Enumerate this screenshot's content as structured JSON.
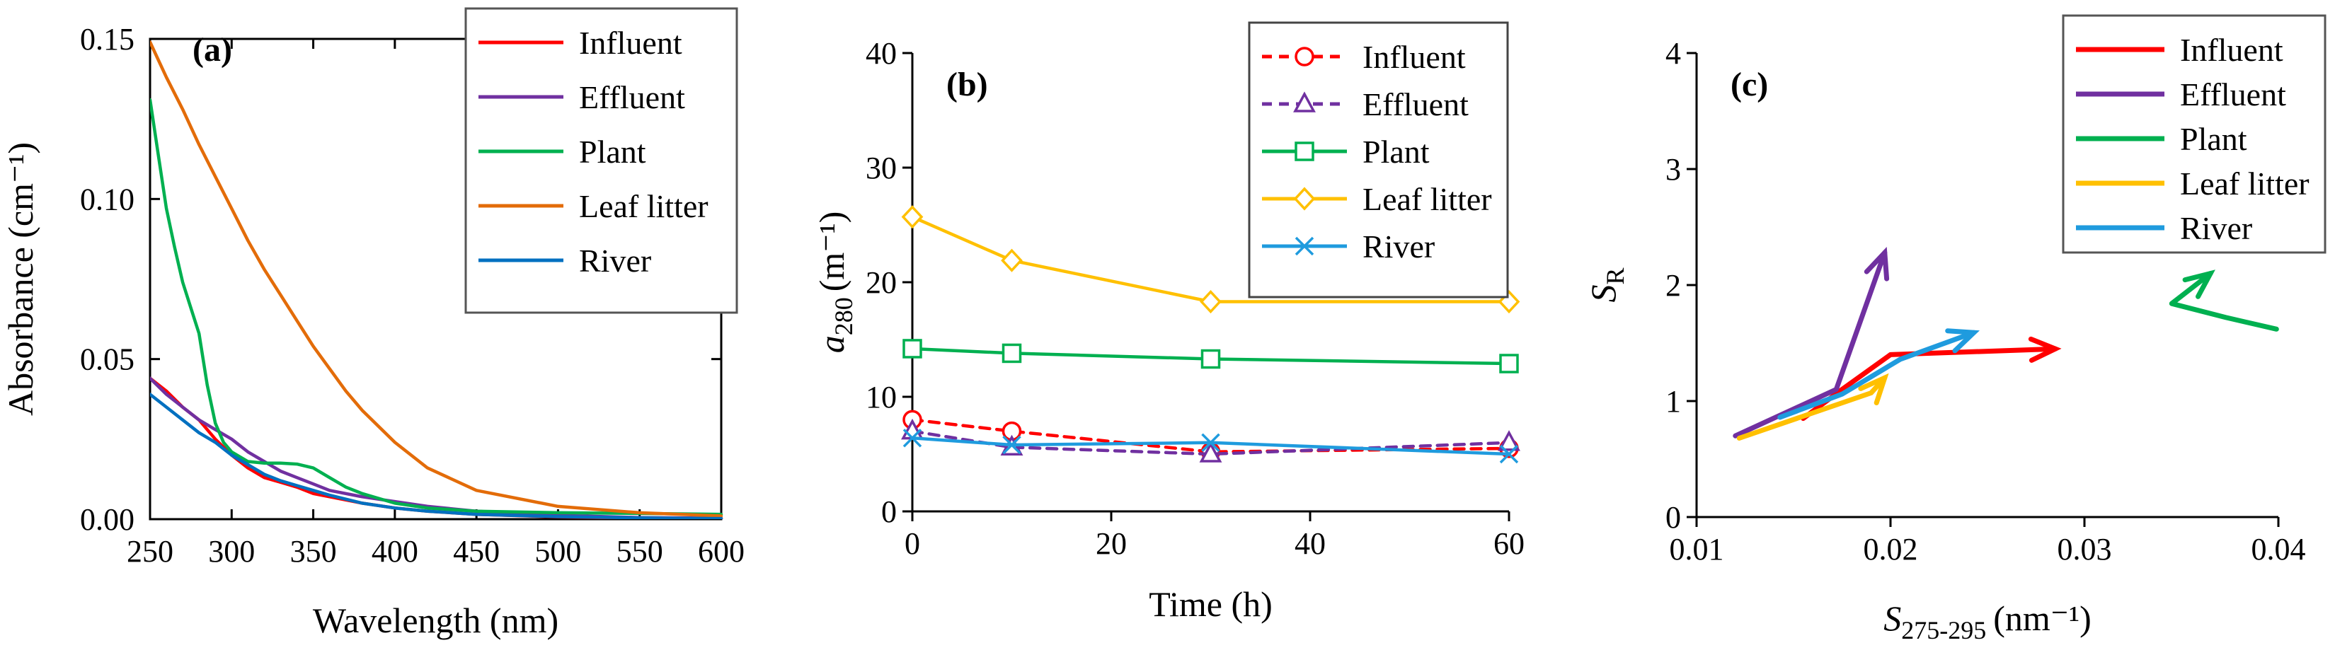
{
  "chart_data": [
    {
      "type": "line",
      "panel_label": "(a)",
      "xlabel": "Wavelength (nm)",
      "ylabel": "Absorbance (cm⁻¹)",
      "xlim": [
        250,
        600
      ],
      "ylim": [
        0,
        0.15
      ],
      "xticks": [
        "250",
        "300",
        "350",
        "400",
        "450",
        "500",
        "550",
        "600"
      ],
      "yticks": [
        "0.00",
        "0.05",
        "0.10",
        "0.15"
      ],
      "legend_position": "top-right",
      "series": [
        {
          "name": "Influent",
          "color": "#ff0000",
          "x": [
            250,
            260,
            270,
            280,
            290,
            300,
            310,
            320,
            330,
            340,
            350,
            360,
            380,
            400,
            420,
            450,
            500,
            550,
            600
          ],
          "y": [
            0.044,
            0.04,
            0.035,
            0.031,
            0.025,
            0.02,
            0.016,
            0.013,
            0.0115,
            0.01,
            0.008,
            0.007,
            0.005,
            0.0035,
            0.0025,
            0.0015,
            0.0007,
            0.0003,
            0.0002
          ]
        },
        {
          "name": "Effluent",
          "color": "#7030a0",
          "x": [
            250,
            260,
            270,
            280,
            290,
            300,
            310,
            320,
            330,
            340,
            350,
            360,
            380,
            400,
            420,
            450,
            500,
            550,
            600
          ],
          "y": [
            0.044,
            0.039,
            0.035,
            0.031,
            0.028,
            0.025,
            0.021,
            0.018,
            0.015,
            0.013,
            0.011,
            0.009,
            0.007,
            0.0055,
            0.004,
            0.0025,
            0.0012,
            0.0005,
            0.0003
          ]
        },
        {
          "name": "Plant",
          "color": "#00b050",
          "x": [
            250,
            255,
            260,
            265,
            270,
            275,
            280,
            285,
            290,
            295,
            300,
            310,
            320,
            330,
            340,
            350,
            360,
            370,
            380,
            400,
            420,
            450,
            500,
            550,
            600
          ],
          "y": [
            0.131,
            0.114,
            0.097,
            0.085,
            0.074,
            0.066,
            0.058,
            0.042,
            0.03,
            0.024,
            0.021,
            0.018,
            0.0175,
            0.0175,
            0.0172,
            0.016,
            0.013,
            0.01,
            0.008,
            0.005,
            0.0035,
            0.0025,
            0.002,
            0.0018,
            0.0015
          ]
        },
        {
          "name": "Leaf litter",
          "color": "#e36c09",
          "x": [
            250,
            260,
            270,
            280,
            290,
            300,
            310,
            320,
            330,
            340,
            350,
            360,
            370,
            380,
            400,
            420,
            450,
            500,
            550,
            600
          ],
          "y": [
            0.149,
            0.138,
            0.128,
            0.117,
            0.107,
            0.097,
            0.087,
            0.078,
            0.07,
            0.062,
            0.054,
            0.047,
            0.04,
            0.034,
            0.024,
            0.016,
            0.009,
            0.004,
            0.002,
            0.001
          ]
        },
        {
          "name": "River",
          "color": "#0070c0",
          "x": [
            250,
            260,
            270,
            280,
            290,
            300,
            310,
            320,
            330,
            340,
            350,
            360,
            380,
            400,
            420,
            450,
            500,
            550,
            600
          ],
          "y": [
            0.039,
            0.035,
            0.031,
            0.027,
            0.024,
            0.02,
            0.017,
            0.014,
            0.012,
            0.0105,
            0.009,
            0.0075,
            0.005,
            0.0035,
            0.0025,
            0.0015,
            0.0008,
            0.0004,
            0.0002
          ]
        }
      ]
    },
    {
      "type": "line",
      "panel_label": "(b)",
      "xlabel": "Time (h)",
      "ylabel_main": "a",
      "ylabel_sub": "280",
      "ylabel_unit": "(m⁻¹)",
      "xlim": [
        0,
        60
      ],
      "ylim": [
        0,
        40
      ],
      "xticks": [
        "0",
        "20",
        "40",
        "60"
      ],
      "yticks": [
        "0",
        "10",
        "20",
        "30",
        "40"
      ],
      "legend_position": "top-right",
      "series": [
        {
          "name": "Influent",
          "color": "#ff0000",
          "marker": "circle",
          "dashed": true,
          "x": [
            0,
            10,
            30,
            60
          ],
          "y": [
            8.0,
            7.0,
            5.2,
            5.5
          ]
        },
        {
          "name": "Effluent",
          "color": "#7030a0",
          "marker": "triangle",
          "dashed": true,
          "x": [
            0,
            10,
            30,
            60
          ],
          "y": [
            7.0,
            5.6,
            5.0,
            6.0
          ]
        },
        {
          "name": "Plant",
          "color": "#00b050",
          "marker": "square",
          "dashed": false,
          "x": [
            0,
            10,
            30,
            60
          ],
          "y": [
            14.2,
            13.8,
            13.3,
            12.9
          ]
        },
        {
          "name": "Leaf litter",
          "color": "#ffc000",
          "marker": "diamond",
          "dashed": false,
          "x": [
            0,
            10,
            30,
            60
          ],
          "y": [
            25.7,
            21.9,
            18.3,
            18.3
          ]
        },
        {
          "name": "River",
          "color": "#1f9bde",
          "marker": "x",
          "dashed": false,
          "x": [
            0,
            10,
            30,
            60
          ],
          "y": [
            6.4,
            5.8,
            6.0,
            5.0
          ]
        }
      ]
    },
    {
      "type": "line",
      "panel_label": "(c)",
      "xlabel_main": "S",
      "xlabel_sub": "275-295",
      "xlabel_unit": "(nm⁻¹)",
      "ylabel_main": "S",
      "ylabel_sub": "R",
      "xlim": [
        0.01,
        0.04
      ],
      "ylim": [
        0,
        4
      ],
      "xticks": [
        "0.01",
        "0.02",
        "0.03",
        "0.04"
      ],
      "yticks": [
        "0",
        "1",
        "2",
        "3",
        "4"
      ],
      "legend_position": "top-right",
      "series": [
        {
          "name": "Influent",
          "color": "#ff0000",
          "x": [
            0.0155,
            0.0175,
            0.02,
            0.0285
          ],
          "y": [
            0.85,
            1.1,
            1.4,
            1.45
          ]
        },
        {
          "name": "Effluent",
          "color": "#7030a0",
          "x": [
            0.012,
            0.0172,
            0.0197
          ],
          "y": [
            0.7,
            1.1,
            2.28
          ]
        },
        {
          "name": "Plant",
          "color": "#00b050",
          "x": [
            0.0399,
            0.0373,
            0.0345,
            0.0365
          ],
          "y": [
            1.62,
            1.72,
            1.84,
            2.1
          ]
        },
        {
          "name": "Leaf litter",
          "color": "#ffc000",
          "x": [
            0.0122,
            0.019,
            0.0197
          ],
          "y": [
            0.68,
            1.07,
            1.2
          ]
        },
        {
          "name": "River",
          "color": "#1f9bde",
          "x": [
            0.0143,
            0.0175,
            0.0205,
            0.0243
          ],
          "y": [
            0.86,
            1.06,
            1.36,
            1.59
          ]
        }
      ]
    }
  ]
}
